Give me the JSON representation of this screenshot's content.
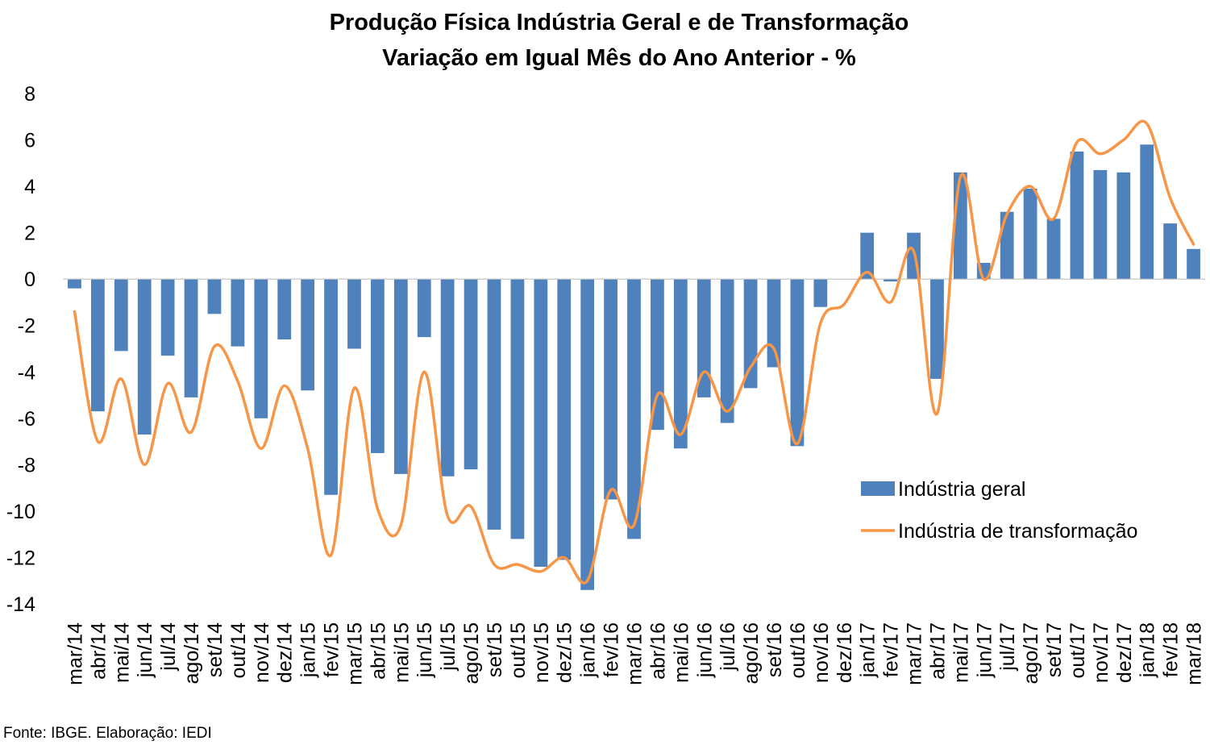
{
  "chart_data": {
    "type": "bar",
    "title": "Produção Física Indústria Geral e de Transformação",
    "subtitle": "Variação em Igual Mês do Ano Anterior - %",
    "ylim": [
      -14,
      8
    ],
    "yticks": [
      8,
      6,
      4,
      2,
      0,
      -2,
      -4,
      -6,
      -8,
      -10,
      -12,
      -14
    ],
    "grid": false,
    "legend_position": "right",
    "categories": [
      "mar/14",
      "abr/14",
      "mai/14",
      "jun/14",
      "jul/14",
      "ago/14",
      "set/14",
      "out/14",
      "nov/14",
      "dez/14",
      "jan/15",
      "fev/15",
      "mar/15",
      "abr/15",
      "mai/15",
      "jun/15",
      "jul/15",
      "ago/15",
      "set/15",
      "out/15",
      "nov/15",
      "dez/15",
      "jan/16",
      "fev/16",
      "mar/16",
      "abr/16",
      "mai/16",
      "jun/16",
      "jul/16",
      "ago/16",
      "set/16",
      "out/16",
      "nov/16",
      "dez/16",
      "jan/17",
      "fev/17",
      "mar/17",
      "abr/17",
      "mai/17",
      "jun/17",
      "jul/17",
      "ago/17",
      "set/17",
      "out/17",
      "nov/17",
      "dez/17",
      "jan/18",
      "fev/18",
      "mar/18"
    ],
    "series": [
      {
        "name": "Indústria geral",
        "type": "bar",
        "color": "#4f81bd",
        "values": [
          -0.4,
          -5.7,
          -3.1,
          -6.7,
          -3.3,
          -5.1,
          -1.5,
          -2.9,
          -6.0,
          -2.6,
          -4.8,
          -9.3,
          -3.0,
          -7.5,
          -8.4,
          -2.5,
          -8.5,
          -8.2,
          -10.8,
          -11.2,
          -12.4,
          -12.1,
          -13.4,
          -9.5,
          -11.2,
          -6.5,
          -7.3,
          -5.1,
          -6.2,
          -4.7,
          -3.8,
          -7.2,
          -1.2,
          0.0,
          2.0,
          -0.1,
          2.0,
          -4.3,
          4.6,
          0.7,
          2.9,
          3.9,
          2.6,
          5.5,
          4.7,
          4.6,
          5.8,
          2.4,
          1.3
        ]
      },
      {
        "name": "Indústria de transformação",
        "type": "line",
        "color": "#f79646",
        "values": [
          -1.4,
          -7.0,
          -4.3,
          -8.0,
          -4.5,
          -6.6,
          -2.9,
          -4.4,
          -7.3,
          -4.6,
          -7.3,
          -11.9,
          -4.7,
          -9.9,
          -10.6,
          -4.0,
          -10.2,
          -9.8,
          -12.3,
          -12.3,
          -12.6,
          -12.0,
          -13.0,
          -9.1,
          -10.6,
          -5.0,
          -6.7,
          -4.0,
          -5.7,
          -3.8,
          -3.0,
          -7.1,
          -1.9,
          -1.1,
          0.3,
          -1.0,
          1.2,
          -5.8,
          4.4,
          0.0,
          2.8,
          4.0,
          2.6,
          5.9,
          5.4,
          6.0,
          6.7,
          3.5,
          1.5
        ]
      }
    ]
  },
  "source_note": "Fonte: IBGE. Elaboração: IEDI"
}
